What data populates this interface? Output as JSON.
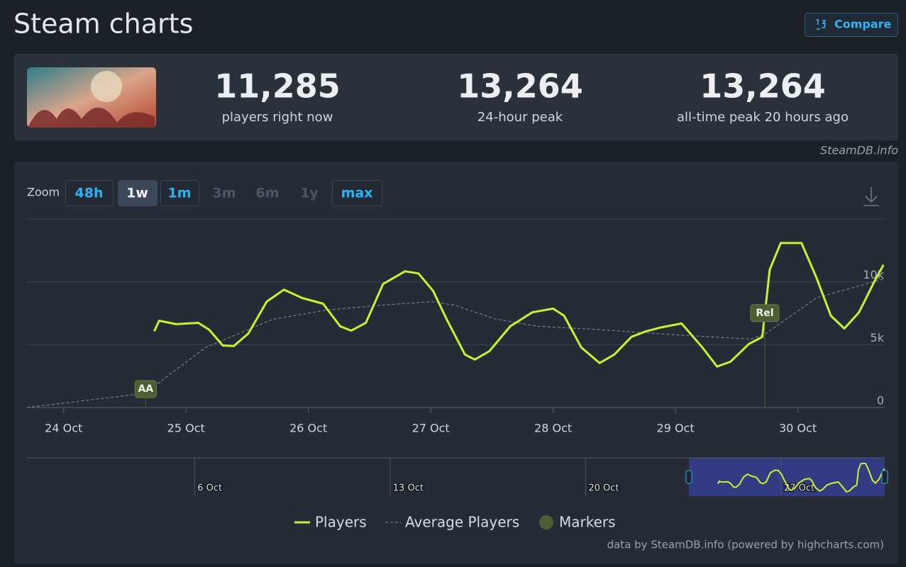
{
  "header": {
    "title": "Steam charts",
    "compare_button": "Compare"
  },
  "stats": [
    {
      "value": "11,285",
      "label": "players right now"
    },
    {
      "value": "13,264",
      "label": "24-hour peak"
    },
    {
      "value": "13,264",
      "label": "all-time peak 20 hours ago"
    }
  ],
  "source": "SteamDB.info",
  "zoom": {
    "label": "Zoom",
    "buttons": [
      "48h",
      "1w",
      "1m",
      "3m",
      "6m",
      "1y",
      "max"
    ],
    "selected_index": 1,
    "disabled_indices": [
      3,
      4,
      5
    ]
  },
  "chart_data": {
    "type": "line",
    "series": [
      {
        "name": "Players",
        "color": "#c6f432",
        "x": [
          24.74,
          24.78,
          24.92,
          25.1,
          25.19,
          25.3,
          25.39,
          25.51,
          25.66,
          25.8,
          25.95,
          26.12,
          26.26,
          26.35,
          26.47,
          26.61,
          26.79,
          26.9,
          27.02,
          27.13,
          27.28,
          27.36,
          27.48,
          27.65,
          27.83,
          28.0,
          28.09,
          28.23,
          28.38,
          28.5,
          28.64,
          28.76,
          28.87,
          29.05,
          29.22,
          29.34,
          29.45,
          29.6,
          29.71,
          29.77,
          29.86,
          30.03,
          30.15,
          30.27,
          30.38,
          30.5,
          30.63,
          30.7
        ],
        "values": [
          6070,
          6910,
          6630,
          6740,
          6180,
          4940,
          4890,
          5900,
          8430,
          9380,
          8710,
          8260,
          6460,
          6120,
          6740,
          9830,
          10840,
          10670,
          9270,
          7020,
          4210,
          3820,
          4490,
          6460,
          7580,
          7870,
          7300,
          4780,
          3540,
          4210,
          5620,
          6070,
          6350,
          6690,
          4780,
          3260,
          3650,
          5060,
          5620,
          10960,
          13090,
          13090,
          10390,
          7300,
          6290,
          7580,
          10110,
          11350
        ]
      },
      {
        "name": "Average Players",
        "color": "#8b9099",
        "dashed": true,
        "x": [
          23.7,
          24.61,
          24.74,
          25.16,
          25.71,
          26.14,
          26.61,
          27.01,
          27.19,
          27.54,
          27.88,
          28.41,
          28.99,
          29.62,
          29.74,
          30.15,
          30.7
        ],
        "values": [
          0,
          1070,
          1690,
          4780,
          7020,
          7750,
          8150,
          8430,
          8150,
          7020,
          6460,
          6180,
          5790,
          5450,
          5900,
          8710,
          10230
        ]
      }
    ],
    "markers": {
      "name": "Markers",
      "color": "#4e5d33",
      "items": [
        {
          "label": "AA",
          "x": 24.67
        },
        {
          "label": "Rel",
          "x": 29.73
        }
      ]
    },
    "xlim": [
      23.7,
      30.71
    ],
    "xticks": [
      {
        "value": 24,
        "label": "24 Oct"
      },
      {
        "value": 25,
        "label": "25 Oct"
      },
      {
        "value": 26,
        "label": "26 Oct"
      },
      {
        "value": 27,
        "label": "27 Oct"
      },
      {
        "value": 28,
        "label": "28 Oct"
      },
      {
        "value": 29,
        "label": "29 Oct"
      },
      {
        "value": 30,
        "label": "30 Oct"
      }
    ],
    "ylim": [
      0,
      15000
    ],
    "yticks": [
      0,
      {
        "value": 5000,
        "label": "5k"
      },
      {
        "value": 10000,
        "label": "10k"
      }
    ],
    "grid": true,
    "legend": "bottom",
    "navigator": {
      "xlim": [
        0,
        30.71
      ],
      "xticks": [
        {
          "value": 6,
          "label": "6 Oct"
        },
        {
          "value": 13,
          "label": "13 Oct"
        },
        {
          "value": 20,
          "label": "20 Oct"
        },
        {
          "value": 27,
          "label": "27 Oct"
        }
      ]
    }
  },
  "credits": "data by SteamDB.info (powered by highcharts.com)"
}
